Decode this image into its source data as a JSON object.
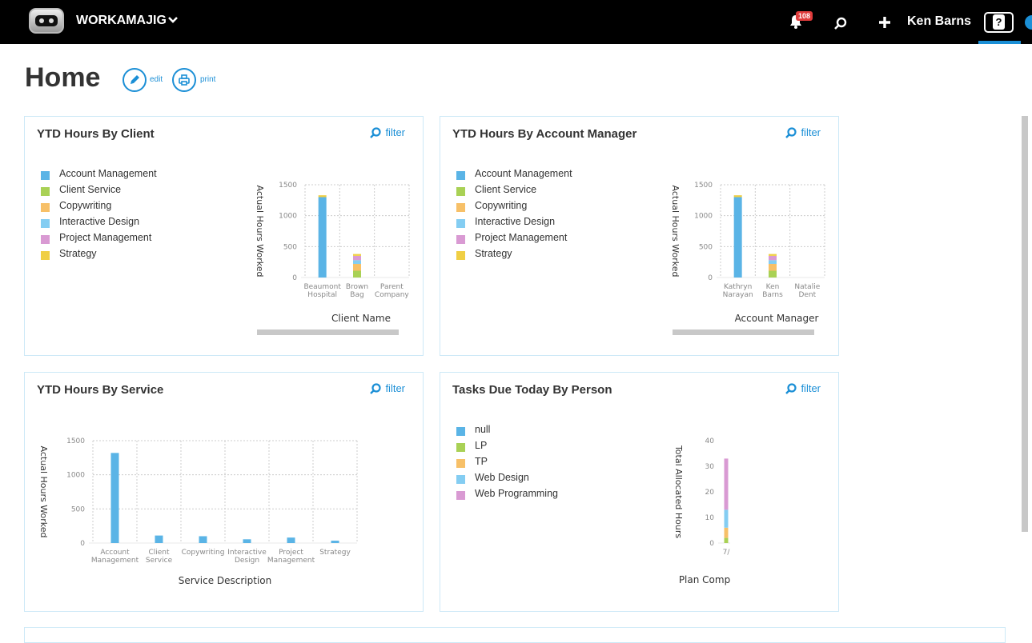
{
  "app": {
    "brand": "WORKAMAJIG",
    "notification_count": "108",
    "user_name": "Ken Barns",
    "help_label": "?"
  },
  "page": {
    "title": "Home",
    "edit_label": "edit",
    "print_label": "print"
  },
  "colors": {
    "accent": "#1b8fd6",
    "blue": "#5ab4e6",
    "green": "#a9d155",
    "orange": "#f7c068",
    "lightblue": "#84cdf2",
    "pink": "#d99ad3",
    "yellow": "#f0cf44"
  },
  "panels": {
    "client": {
      "title": "YTD Hours By Client",
      "filter_label": "filter",
      "legend": [
        "Account Management",
        "Client Service",
        "Copywriting",
        "Interactive Design",
        "Project Management",
        "Strategy"
      ]
    },
    "manager": {
      "title": "YTD Hours By Account Manager",
      "filter_label": "filter",
      "legend": [
        "Account Management",
        "Client Service",
        "Copywriting",
        "Interactive Design",
        "Project Management",
        "Strategy"
      ]
    },
    "service": {
      "title": "YTD Hours By Service",
      "filter_label": "filter"
    },
    "tasks": {
      "title": "Tasks Due Today By Person",
      "filter_label": "filter",
      "legend": [
        "null",
        "LP",
        "TP",
        "Web Design",
        "Web Programming"
      ]
    }
  },
  "chart_data": [
    {
      "type": "bar",
      "stacked": true,
      "ylabel": "Actual Hours Worked",
      "xlabel": "Client Name",
      "ylim": [
        0,
        1500
      ],
      "yticks": [
        0,
        500,
        1000,
        1500
      ],
      "categories": [
        [
          "Beaumont",
          "Hospital"
        ],
        [
          "Brown",
          "Bag"
        ],
        [
          "Parent",
          "Company"
        ]
      ],
      "series": [
        {
          "name": "Account Management",
          "color": "#5ab4e6",
          "values": [
            1300,
            0,
            0
          ]
        },
        {
          "name": "Client Service",
          "color": "#a9d155",
          "values": [
            0,
            110,
            0
          ]
        },
        {
          "name": "Copywriting",
          "color": "#f7c068",
          "values": [
            0,
            110,
            0
          ]
        },
        {
          "name": "Interactive Design",
          "color": "#84cdf2",
          "values": [
            0,
            60,
            0
          ]
        },
        {
          "name": "Project Management",
          "color": "#d99ad3",
          "values": [
            0,
            70,
            0
          ]
        },
        {
          "name": "Strategy",
          "color": "#f0cf44",
          "values": [
            30,
            30,
            0
          ]
        }
      ]
    },
    {
      "type": "bar",
      "stacked": true,
      "ylabel": "Actual Hours Worked",
      "xlabel": "Account Manager",
      "ylim": [
        0,
        1500
      ],
      "yticks": [
        0,
        500,
        1000,
        1500
      ],
      "categories": [
        [
          "Kathryn",
          "Narayan"
        ],
        [
          "Ken",
          "Barns"
        ],
        [
          "Natalie",
          "Dent"
        ]
      ],
      "series": [
        {
          "name": "Account Management",
          "color": "#5ab4e6",
          "values": [
            1300,
            0,
            0
          ]
        },
        {
          "name": "Client Service",
          "color": "#a9d155",
          "values": [
            0,
            110,
            0
          ]
        },
        {
          "name": "Copywriting",
          "color": "#f7c068",
          "values": [
            0,
            110,
            0
          ]
        },
        {
          "name": "Interactive Design",
          "color": "#84cdf2",
          "values": [
            0,
            60,
            0
          ]
        },
        {
          "name": "Project Management",
          "color": "#d99ad3",
          "values": [
            0,
            70,
            0
          ]
        },
        {
          "name": "Strategy",
          "color": "#f0cf44",
          "values": [
            30,
            30,
            0
          ]
        }
      ]
    },
    {
      "type": "bar",
      "ylabel": "Actual Hours Worked",
      "xlabel": "Service Description",
      "ylim": [
        0,
        1500
      ],
      "yticks": [
        0,
        500,
        1000,
        1500
      ],
      "categories": [
        [
          "Account",
          "Management"
        ],
        [
          "Client",
          "Service"
        ],
        [
          "Copywriting"
        ],
        [
          "Interactive",
          "Design"
        ],
        [
          "Project",
          "Management"
        ],
        [
          "Strategy"
        ]
      ],
      "series": [
        {
          "color": "#5ab4e6",
          "values": [
            1320,
            110,
            100,
            55,
            80,
            35
          ]
        }
      ]
    },
    {
      "type": "bar",
      "stacked": true,
      "ylabel": "Total Allocated Hours",
      "xlabel": "Plan Comp",
      "ylim": [
        0,
        40
      ],
      "yticks": [
        0,
        10,
        20,
        30,
        40
      ],
      "categories": [
        [
          "7/"
        ]
      ],
      "series": [
        {
          "name": "null",
          "color": "#5ab4e6",
          "values": [
            0
          ]
        },
        {
          "name": "LP",
          "color": "#a9d155",
          "values": [
            2
          ]
        },
        {
          "name": "TP",
          "color": "#f7c068",
          "values": [
            4
          ]
        },
        {
          "name": "Web Design",
          "color": "#84cdf2",
          "values": [
            7
          ]
        },
        {
          "name": "Web Programming",
          "color": "#d99ad3",
          "values": [
            20
          ]
        }
      ]
    }
  ]
}
